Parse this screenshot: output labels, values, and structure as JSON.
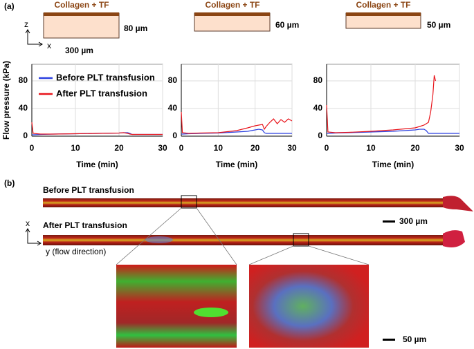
{
  "figure": {
    "panel_a": "(a)",
    "panel_b": "(b)",
    "channels": [
      {
        "label": "Collagen + TF",
        "height": "80 µm"
      },
      {
        "label": "Collagen + TF",
        "height": "60 µm"
      },
      {
        "label": "Collagen + TF",
        "height": "50 µm"
      }
    ],
    "axis_z": "z",
    "axis_x": "x",
    "width": "300 µm",
    "rows": [
      "Before PLT transfusion",
      "After PLT transfusion"
    ],
    "b_axis_x": "x",
    "b_axis_y": "y (flow direction)",
    "scale_large": "300 µm",
    "scale_small": "50 µm"
  },
  "chart_data": [
    {
      "type": "line",
      "xlabel": "Time (min)",
      "ylabel": "Flow pressure (kPa)",
      "legend": "upper right",
      "grid": true,
      "x": [
        0,
        0.3,
        2,
        5,
        10,
        15,
        20,
        21,
        22,
        22.5,
        23,
        25,
        30
      ],
      "xlim": [
        0,
        30
      ],
      "xticks": [
        0,
        10,
        20,
        30
      ],
      "ylim": [
        0,
        104
      ],
      "yticks": [
        0,
        40,
        80
      ],
      "series": [
        {
          "name": "Before PLT transfusion",
          "color": "#2a3fe0",
          "values": [
            2,
            2,
            2.5,
            3,
            3.5,
            4,
            4.5,
            5,
            5,
            4,
            2.5,
            2.5,
            2.5
          ]
        },
        {
          "name": "After PLT transfusion",
          "color": "#e8141b",
          "values": [
            20,
            4,
            3,
            3,
            3.5,
            4,
            4.5,
            5,
            4,
            3,
            2.5,
            2.5,
            2.5
          ]
        }
      ]
    },
    {
      "type": "line",
      "xlabel": "Time (min)",
      "grid": true,
      "x": [
        0,
        0.3,
        2,
        5,
        10,
        15,
        18,
        20,
        21,
        22,
        22.5,
        23,
        24,
        25,
        26,
        27,
        28,
        29,
        30
      ],
      "xlim": [
        0,
        30
      ],
      "xticks": [
        0,
        10,
        20,
        30
      ],
      "ylim": [
        0,
        104
      ],
      "yticks": [
        0,
        40,
        80
      ],
      "series": [
        {
          "color": "#2a3fe0",
          "values": [
            3,
            3,
            3.5,
            4,
            4.5,
            6,
            7,
            9,
            10,
            9,
            5,
            4,
            4,
            4,
            4,
            4,
            4,
            4,
            4
          ]
        },
        {
          "color": "#e8141b",
          "values": [
            35,
            5,
            4,
            4.5,
            5,
            8,
            12,
            15,
            16,
            17,
            10,
            14,
            20,
            25,
            18,
            24,
            20,
            25,
            22
          ]
        }
      ]
    },
    {
      "type": "line",
      "xlabel": "Time (min)",
      "grid": true,
      "x": [
        0,
        0.3,
        2,
        5,
        10,
        15,
        20,
        21,
        22,
        22.5,
        23,
        23.5,
        24,
        24.3,
        24.6,
        25,
        30
      ],
      "xlim": [
        0,
        30
      ],
      "xticks": [
        0,
        10,
        20,
        30
      ],
      "ylim": [
        0,
        104
      ],
      "yticks": [
        0,
        40,
        80
      ],
      "series": [
        {
          "color": "#2a3fe0",
          "values": [
            4,
            4,
            4.5,
            5,
            6,
            7,
            9,
            10,
            10,
            8,
            4,
            4,
            4,
            4,
            4,
            4,
            4
          ]
        },
        {
          "color": "#e8141b",
          "values": [
            45,
            6,
            5,
            5.5,
            7,
            9,
            12,
            14,
            16,
            18,
            20,
            35,
            60,
            88,
            80,
            null,
            null
          ]
        }
      ]
    }
  ]
}
